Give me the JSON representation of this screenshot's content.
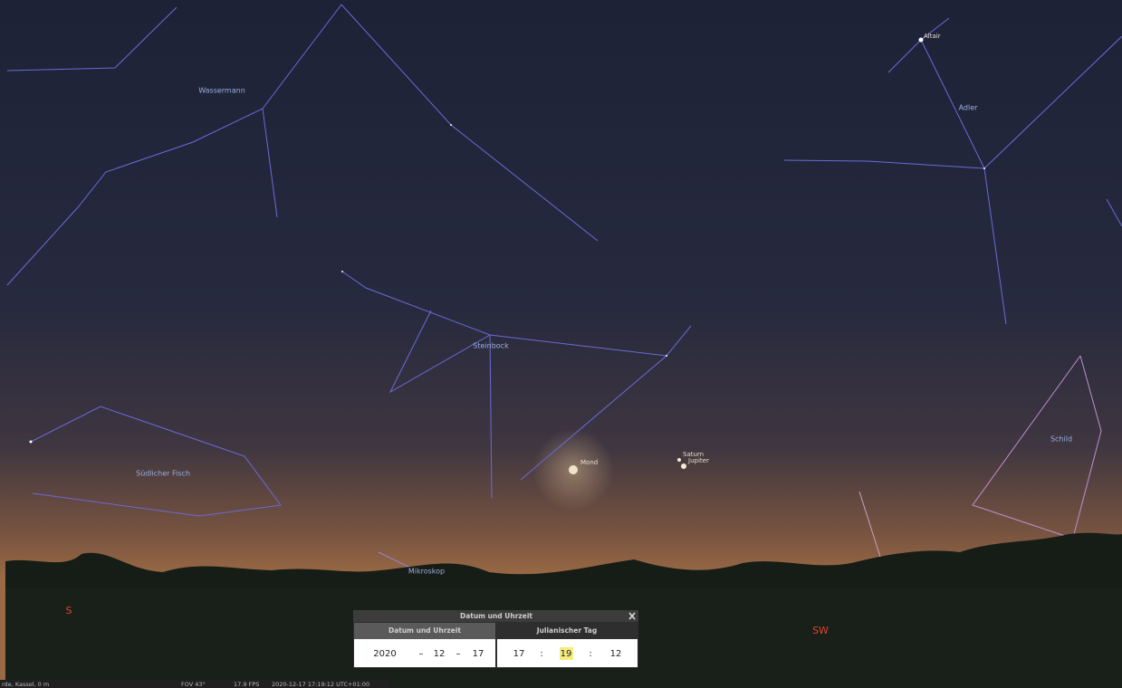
{
  "sky_labels": {
    "constellations": [
      "Wassermann",
      "Steinbock",
      "Südlicher Fisch",
      "Mikroskop",
      "Adler",
      "Schild"
    ],
    "objects": [
      "Altair",
      "Mond",
      "Saturn",
      "Jupiter"
    ],
    "compass": [
      "S",
      "SW"
    ]
  },
  "dialog": {
    "title": "Datum und Uhrzeit",
    "tabs": [
      "Datum und Uhrzeit",
      "Julianischer Tag"
    ],
    "date": {
      "year": "2020",
      "sep1": "–",
      "month": "12",
      "sep2": "–",
      "day": "17"
    },
    "time": {
      "hour": "17",
      "sep1": ":",
      "minute": "19",
      "sep2": ":",
      "second": "12"
    }
  },
  "status_bar": {
    "location": "rde, Kassel, 0 m",
    "fov": "FOV 43°",
    "fps": "17.9 FPS",
    "datetime": "2020-12-17 17:19:12 UTC+01:00"
  }
}
